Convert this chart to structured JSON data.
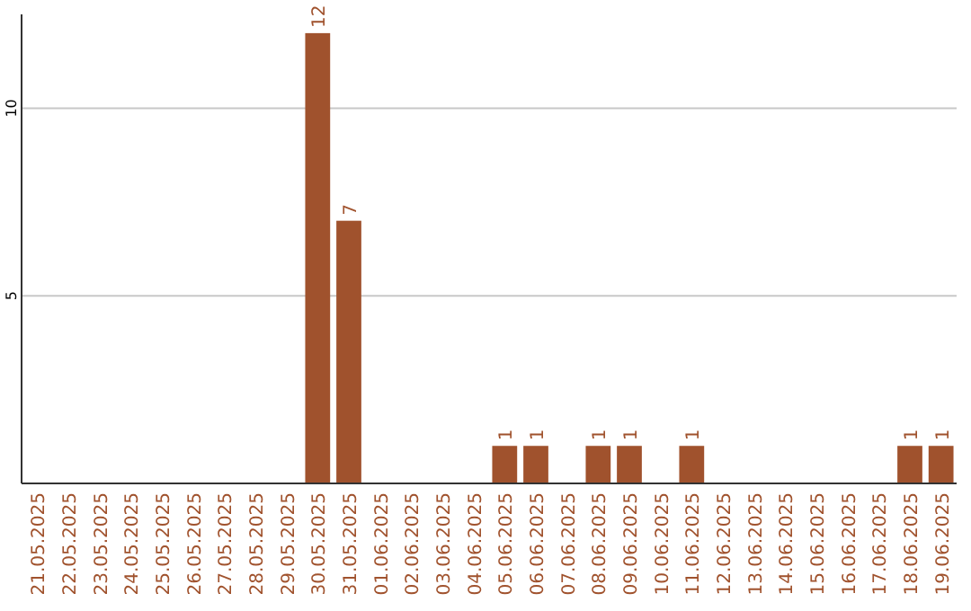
{
  "chart_data": {
    "type": "bar",
    "categories": [
      "21.05.2025",
      "22.05.2025",
      "23.05.2025",
      "24.05.2025",
      "25.05.2025",
      "26.05.2025",
      "27.05.2025",
      "28.05.2025",
      "29.05.2025",
      "30.05.2025",
      "31.05.2025",
      "01.06.2025",
      "02.06.2025",
      "03.06.2025",
      "04.06.2025",
      "05.06.2025",
      "06.06.2025",
      "07.06.2025",
      "08.06.2025",
      "09.06.2025",
      "10.06.2025",
      "11.06.2025",
      "12.06.2025",
      "13.06.2025",
      "14.06.2025",
      "15.06.2025",
      "16.06.2025",
      "17.06.2025",
      "18.06.2025",
      "19.06.2025"
    ],
    "values": [
      0,
      0,
      0,
      0,
      0,
      0,
      0,
      0,
      0,
      12,
      7,
      0,
      0,
      0,
      0,
      1,
      1,
      0,
      1,
      1,
      0,
      1,
      0,
      0,
      0,
      0,
      0,
      0,
      1,
      1
    ],
    "value_labels": [
      null,
      null,
      null,
      null,
      null,
      null,
      null,
      null,
      null,
      "12",
      "7",
      null,
      null,
      null,
      null,
      "1",
      "1",
      null,
      "1",
      "1",
      null,
      "1",
      null,
      null,
      null,
      null,
      null,
      null,
      "1",
      "1"
    ],
    "color": "#a0522d",
    "ylim": [
      0,
      12.5
    ],
    "yticks": [
      5,
      10
    ],
    "grid": "y"
  }
}
